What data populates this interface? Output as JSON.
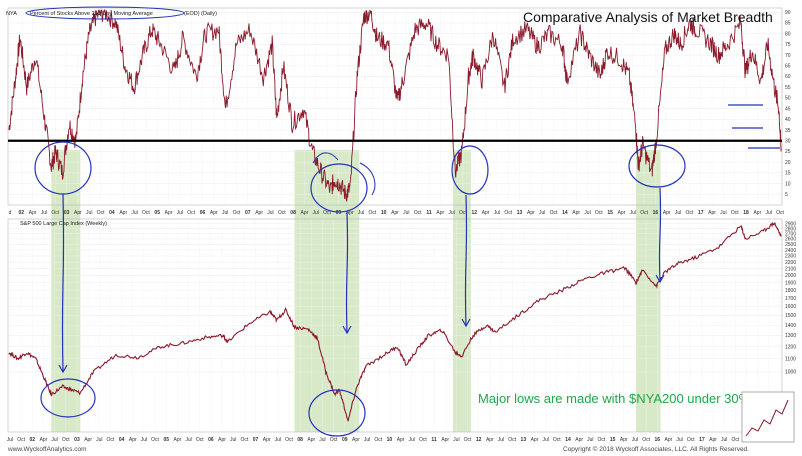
{
  "title": "Comparative Analysis of Market Breadth",
  "callout": "Major lows are made with $NYA200 under 30%",
  "footer_left": "www.WyckoffAnalytics.com",
  "footer_right": "Copyright © 2018 Wyckoff Associates, LLC. All Rights Reserved.",
  "colors": {
    "price": "#8b1a2b",
    "highlight": "#c9e2b4",
    "annotation": "#2233bb",
    "callout": "#20a845",
    "threshold": "#000000"
  },
  "chart_data": [
    {
      "type": "line",
      "title": "$NYA200 Percent of Stocks Above 200 Day Moving Average (EOD) (Daily)",
      "header_prefix": "NYA",
      "header_label": "Percent of Stocks Above 200 Day Moving Average",
      "header_suffix": "(EOD) (Daily)",
      "xlim": [
        2001.58,
        2018.92
      ],
      "ylim": [
        0,
        92
      ],
      "y_ticks": [
        5,
        10,
        15,
        20,
        25,
        30,
        35,
        40,
        45,
        50,
        55,
        60,
        65,
        70,
        75,
        80,
        85,
        90
      ],
      "threshold_line": 30,
      "series": [
        {
          "x": [
            2001.6,
            2001.75,
            2001.85,
            2002.0,
            2002.2,
            2002.4,
            2002.55,
            2002.65,
            2002.8,
            2002.95,
            2003.1,
            2003.25,
            2003.4,
            2003.55,
            2003.75,
            2004.0,
            2004.2,
            2004.4,
            2004.6,
            2004.8,
            2005.0,
            2005.3,
            2005.5,
            2005.8,
            2006.0,
            2006.3,
            2006.45,
            2006.7,
            2007.0,
            2007.3,
            2007.5,
            2007.6,
            2007.75,
            2007.95,
            2008.2,
            2008.4,
            2008.6,
            2008.8,
            2008.9,
            2009.0,
            2009.15,
            2009.25,
            2009.4,
            2009.55,
            2009.7,
            2009.85,
            2010.1,
            2010.3,
            2010.45,
            2010.7,
            2010.95,
            2011.2,
            2011.45,
            2011.6,
            2011.75,
            2011.9,
            2012.0,
            2012.2,
            2012.45,
            2012.7,
            2012.9,
            2013.2,
            2013.45,
            2013.7,
            2014.0,
            2014.1,
            2014.4,
            2014.6,
            2014.85,
            2015.0,
            2015.3,
            2015.5,
            2015.65,
            2015.7,
            2015.8,
            2016.0,
            2016.1,
            2016.3,
            2016.5,
            2016.65,
            2016.85,
            2017.0,
            2017.3,
            2017.5,
            2017.7,
            2018.0,
            2018.1,
            2018.25,
            2018.45,
            2018.6,
            2018.75,
            2018.85,
            2018.9
          ],
          "values": [
            35,
            60,
            78,
            55,
            70,
            40,
            18,
            25,
            15,
            38,
            30,
            60,
            80,
            88,
            90,
            85,
            65,
            55,
            70,
            82,
            75,
            62,
            78,
            60,
            80,
            82,
            45,
            75,
            82,
            60,
            75,
            40,
            65,
            38,
            45,
            25,
            15,
            7,
            12,
            10,
            5,
            8,
            60,
            88,
            90,
            78,
            75,
            48,
            60,
            82,
            85,
            75,
            70,
            15,
            25,
            60,
            70,
            58,
            80,
            55,
            78,
            82,
            74,
            80,
            75,
            58,
            80,
            70,
            60,
            72,
            68,
            60,
            35,
            18,
            28,
            15,
            30,
            72,
            80,
            75,
            85,
            82,
            76,
            70,
            75,
            85,
            62,
            72,
            58,
            75,
            55,
            45,
            25
          ]
        }
      ],
      "x_tick_labels": [
        "d",
        "02",
        "Apr",
        "Jul",
        "Oct",
        "03",
        "Apr",
        "Jul",
        "Oct",
        "04",
        "Apr",
        "Jul",
        "Oct",
        "05",
        "Apr",
        "Jul",
        "Oct",
        "06",
        "Apr",
        "Jul",
        "Oct",
        "07",
        "Apr",
        "Jul",
        "Oct",
        "08",
        "Apr",
        "Jul",
        "Oct",
        "09",
        "Apr",
        "Jul",
        "Oct",
        "10",
        "Apr",
        "Jul",
        "Oct",
        "11",
        "Apr",
        "Jul",
        "Oct",
        "12",
        "Apr",
        "Jul",
        "Oct",
        "13",
        "Apr",
        "Jul",
        "Oct",
        "14",
        "Apr",
        "Jul",
        "Oct",
        "15",
        "Apr",
        "Jul",
        "Oct",
        "16",
        "Apr",
        "Jul",
        "Oct",
        "17",
        "Apr",
        "Jul",
        "Oct",
        "18",
        "Apr",
        "Jul",
        "Oct"
      ]
    },
    {
      "type": "line",
      "title": "$SPX S&P 500 Large Cap Index (Weekly)",
      "header_label": "S&P 500 Large Cap Index (Weekly)",
      "xlim": [
        2001.58,
        2018.92
      ],
      "ylim": [
        650,
        3000
      ],
      "y_ticks": [
        1000,
        1100,
        1200,
        1300,
        1400,
        1500,
        1600,
        1700,
        1800,
        1900,
        2000,
        2100,
        2200,
        2300,
        2400,
        2500,
        2600,
        2700,
        2800,
        2900
      ],
      "series": [
        {
          "x": [
            2001.6,
            2001.8,
            2002.0,
            2002.2,
            2002.4,
            2002.55,
            2002.8,
            2003.0,
            2003.2,
            2003.5,
            2004.0,
            2004.5,
            2005.0,
            2005.5,
            2006.0,
            2006.4,
            2006.5,
            2007.0,
            2007.45,
            2007.6,
            2007.8,
            2008.0,
            2008.3,
            2008.5,
            2008.7,
            2008.9,
            2009.0,
            2009.2,
            2009.4,
            2009.6,
            2010.0,
            2010.3,
            2010.5,
            2010.8,
            2011.0,
            2011.3,
            2011.6,
            2011.75,
            2012.0,
            2012.3,
            2012.5,
            2013.0,
            2013.5,
            2014.0,
            2014.5,
            2015.0,
            2015.4,
            2015.65,
            2015.8,
            2016.1,
            2016.3,
            2016.6,
            2017.0,
            2017.5,
            2018.0,
            2018.1,
            2018.5,
            2018.75,
            2018.9
          ],
          "values": [
            1150,
            1100,
            1150,
            1100,
            950,
            850,
            900,
            880,
            860,
            1000,
            1130,
            1110,
            1200,
            1230,
            1280,
            1300,
            1240,
            1420,
            1540,
            1450,
            1560,
            1380,
            1360,
            1280,
            1000,
            850,
            880,
            700,
            900,
            1040,
            1130,
            1200,
            1050,
            1200,
            1300,
            1350,
            1150,
            1120,
            1300,
            1400,
            1330,
            1500,
            1680,
            1800,
            1950,
            2050,
            2110,
            1900,
            2080,
            1850,
            2050,
            2180,
            2280,
            2450,
            2850,
            2600,
            2750,
            2920,
            2650
          ]
        }
      ],
      "x_tick_labels": [
        "Jul",
        "Oct",
        "02",
        "Apr",
        "Jul",
        "Oct",
        "03",
        "Apr",
        "Jul",
        "Oct",
        "04",
        "Apr",
        "Jul",
        "Oct",
        "05",
        "Apr",
        "Jul",
        "Oct",
        "06",
        "Apr",
        "Jul",
        "Oct",
        "07",
        "Apr",
        "Jul",
        "Oct",
        "08",
        "Apr",
        "Jul",
        "Oct",
        "09",
        "Apr",
        "Jul",
        "Oct",
        "10",
        "Apr",
        "Jul",
        "Oct",
        "11",
        "Apr",
        "Jul",
        "Oct",
        "12",
        "Apr",
        "Jul",
        "Oct",
        "13",
        "Apr",
        "Jul",
        "Oct",
        "14",
        "Apr",
        "Jul",
        "Oct",
        "15",
        "Apr",
        "Jul",
        "Oct",
        "16",
        "Apr",
        "Jul",
        "Oct",
        "17",
        "Apr",
        "Jul",
        "Oct",
        "18",
        "Apr",
        "Jul",
        "Oct"
      ]
    }
  ],
  "highlight_periods": [
    [
      2002.55,
      2003.2
    ],
    [
      2008.0,
      2009.45
    ],
    [
      2011.55,
      2011.95
    ],
    [
      2015.65,
      2016.2
    ]
  ]
}
